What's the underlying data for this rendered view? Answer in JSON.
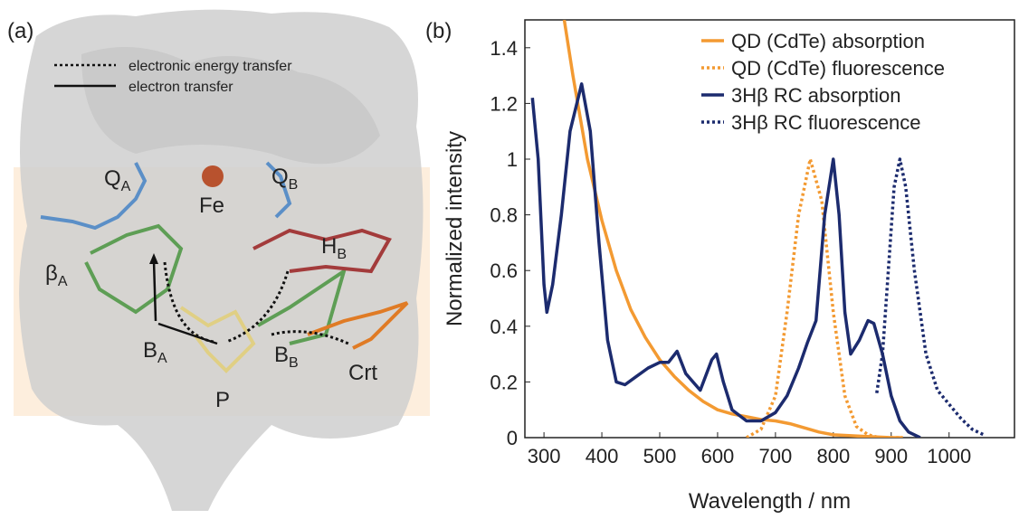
{
  "panel_a": {
    "label": "(a)",
    "legend": [
      "electronic energy transfer",
      "electron transfer"
    ],
    "labels": [
      {
        "main": "Q",
        "sub": "A"
      },
      {
        "main": "Fe"
      },
      {
        "main": "Q",
        "sub": "B"
      },
      {
        "main": "H",
        "sub": "B"
      },
      {
        "main": "β",
        "sub": "A"
      },
      {
        "main": "B",
        "sub": "A"
      },
      {
        "main": "P"
      },
      {
        "main": "B",
        "sub": "B"
      },
      {
        "main": "Crt"
      }
    ]
  },
  "chart_data": {
    "type": "line",
    "panel_label": "(b)",
    "xlabel": "Wavelength / nm",
    "ylabel": "Normalized intensity",
    "xlim": [
      267,
      1113
    ],
    "ylim": [
      0,
      1.5
    ],
    "xticks": [
      300,
      400,
      500,
      600,
      700,
      800,
      900,
      1000
    ],
    "yticks": [
      0,
      0.2,
      0.4,
      0.6,
      0.8,
      1,
      1.2,
      1.4
    ],
    "legend_position": "upper right",
    "series": [
      {
        "name": "QD (CdTe) absorption",
        "color": "#f39a32",
        "dashed": false,
        "x": [
          335,
          350,
          375,
          400,
          425,
          450,
          475,
          500,
          525,
          550,
          575,
          600,
          625,
          650,
          675,
          700,
          725,
          750,
          775,
          800,
          850,
          900,
          920
        ],
        "values": [
          1.5,
          1.3,
          1.0,
          0.78,
          0.6,
          0.46,
          0.36,
          0.28,
          0.22,
          0.17,
          0.13,
          0.1,
          0.085,
          0.075,
          0.065,
          0.06,
          0.05,
          0.035,
          0.02,
          0.01,
          0.005,
          0,
          0
        ]
      },
      {
        "name": "QD (CdTe) fluorescence",
        "color": "#f39a32",
        "dashed": true,
        "x": [
          650,
          675,
          700,
          720,
          740,
          760,
          780,
          800,
          820,
          840,
          860,
          880,
          920
        ],
        "values": [
          0,
          0.03,
          0.15,
          0.45,
          0.8,
          1.0,
          0.85,
          0.45,
          0.15,
          0.04,
          0.01,
          0,
          0
        ]
      },
      {
        "name": "3Hβ RC absorption",
        "color": "#1c2b6e",
        "dashed": false,
        "x": [
          280,
          290,
          300,
          305,
          315,
          330,
          345,
          365,
          380,
          395,
          410,
          425,
          440,
          460,
          480,
          500,
          515,
          530,
          545,
          570,
          590,
          598,
          610,
          625,
          650,
          675,
          700,
          720,
          740,
          755,
          770,
          785,
          800,
          810,
          820,
          830,
          845,
          860,
          870,
          885,
          900,
          915,
          930,
          950
        ],
        "values": [
          1.22,
          1.0,
          0.55,
          0.45,
          0.55,
          0.8,
          1.1,
          1.27,
          1.1,
          0.7,
          0.35,
          0.2,
          0.19,
          0.22,
          0.25,
          0.27,
          0.27,
          0.31,
          0.23,
          0.17,
          0.28,
          0.3,
          0.2,
          0.1,
          0.06,
          0.06,
          0.09,
          0.15,
          0.25,
          0.34,
          0.42,
          0.8,
          1.0,
          0.8,
          0.45,
          0.3,
          0.35,
          0.42,
          0.41,
          0.3,
          0.15,
          0.06,
          0.02,
          0
        ]
      },
      {
        "name": "3Hβ RC fluorescence",
        "color": "#1c2b6e",
        "dashed": true,
        "x": [
          875,
          885,
          895,
          905,
          915,
          925,
          940,
          960,
          980,
          1000,
          1020,
          1040,
          1060
        ],
        "values": [
          0.16,
          0.3,
          0.6,
          0.9,
          1.0,
          0.9,
          0.6,
          0.3,
          0.17,
          0.12,
          0.07,
          0.03,
          0.01
        ]
      }
    ]
  }
}
